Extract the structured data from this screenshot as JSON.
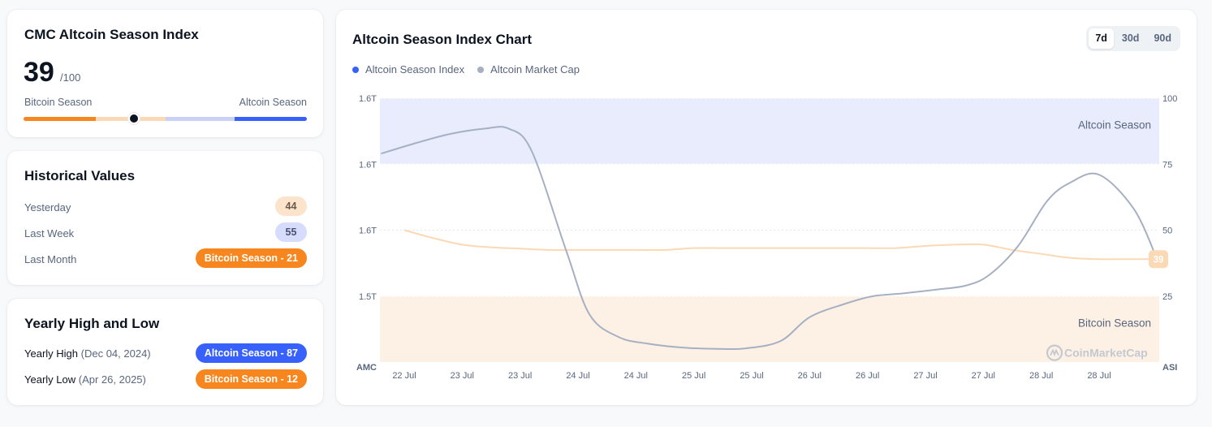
{
  "index_card": {
    "title": "CMC Altcoin Season Index",
    "value": "39",
    "max": "/100",
    "value_number": 39,
    "left_label": "Bitcoin Season",
    "right_label": "Altcoin Season",
    "segment_colors": [
      "#f7861e",
      "#fcd9b6",
      "#c9d1f7",
      "#3861fb"
    ]
  },
  "history_card": {
    "title": "Historical Values",
    "rows": [
      {
        "label": "Yesterday",
        "value": "44",
        "style": "peach"
      },
      {
        "label": "Last Week",
        "value": "55",
        "style": "lav"
      },
      {
        "label": "Last Month",
        "value": "Bitcoin Season - 21",
        "style": "orange"
      }
    ]
  },
  "yearly_card": {
    "title": "Yearly High and Low",
    "rows": [
      {
        "label": "Yearly High",
        "date": "(Dec 04, 2024)",
        "value": "Altcoin Season - 87",
        "style": "blue"
      },
      {
        "label": "Yearly Low",
        "date": "(Apr 26, 2025)",
        "value": "Bitcoin Season - 12",
        "style": "orange"
      }
    ]
  },
  "chart_card": {
    "title": "Altcoin Season Index Chart",
    "tabs": [
      "7d",
      "30d",
      "90d"
    ],
    "active_tab": "7d",
    "legend": [
      {
        "label": "Altcoin Season Index",
        "color": "#3861fb"
      },
      {
        "label": "Altcoin Market Cap",
        "color": "#a6b0c3"
      }
    ],
    "watermark": "CoinMarketCap",
    "watermark_icon": "coinmarketcap-logo-icon"
  },
  "chart_data": {
    "type": "line",
    "left_axis": {
      "title": "AMC",
      "ticks": [
        "1.6T",
        "1.6T",
        "1.6T",
        "1.5T"
      ]
    },
    "right_axis": {
      "title": "ASI",
      "ticks": [
        "100",
        "75",
        "50",
        "25"
      ],
      "ylim": [
        0,
        100
      ]
    },
    "x_ticks": [
      "22 Jul",
      "23 Jul",
      "23 Jul",
      "24 Jul",
      "24 Jul",
      "25 Jul",
      "25 Jul",
      "26 Jul",
      "26 Jul",
      "27 Jul",
      "27 Jul",
      "28 Jul",
      "28 Jul"
    ],
    "zones": [
      {
        "label": "Altcoin Season",
        "from": 75,
        "to": 100,
        "color": "#e8ecfd"
      },
      {
        "label": "Bitcoin Season",
        "from": 0,
        "to": 25,
        "color": "#fdf1e5"
      }
    ],
    "grid": true,
    "series": [
      {
        "name": "Altcoin Season Index",
        "axis": "right",
        "color": "#fbd9b5",
        "x": [
          0,
          0.5,
          1,
          1.5,
          2,
          2.5,
          3,
          3.5,
          4,
          4.5,
          5,
          5.5,
          6,
          6.5,
          7,
          7.5,
          8,
          8.5,
          9,
          9.5,
          10,
          10.5,
          11,
          11.5,
          12,
          12.5,
          13
        ],
        "values": [
          50,
          47,
          44.5,
          43.5,
          43,
          42.5,
          42.5,
          42.5,
          42.5,
          42.5,
          43.2,
          43.2,
          43.2,
          43.2,
          43.2,
          43.2,
          43.2,
          43.2,
          44,
          44.5,
          44.5,
          42.5,
          41,
          39.5,
          39,
          39,
          39
        ]
      },
      {
        "name": "Altcoin Market Cap",
        "axis": "right",
        "color": "#a6b0c3",
        "x": [
          -0.4,
          0.2,
          0.8,
          1.4,
          1.8,
          2.2,
          2.8,
          3.2,
          3.7,
          4.2,
          4.8,
          5.4,
          5.9,
          6.5,
          7.0,
          7.6,
          8.1,
          8.6,
          9.2,
          9.7,
          10.1,
          10.6,
          11.1,
          11.5,
          12.0,
          12.6,
          13
        ],
        "values": [
          79,
          83,
          86.5,
          88.5,
          88.5,
          80,
          42,
          18,
          9.5,
          7,
          5.5,
          5,
          5.2,
          8,
          17,
          22,
          25,
          26,
          27.5,
          29,
          33,
          44,
          61,
          68,
          71,
          58,
          39
        ]
      }
    ],
    "current_value": "39"
  }
}
